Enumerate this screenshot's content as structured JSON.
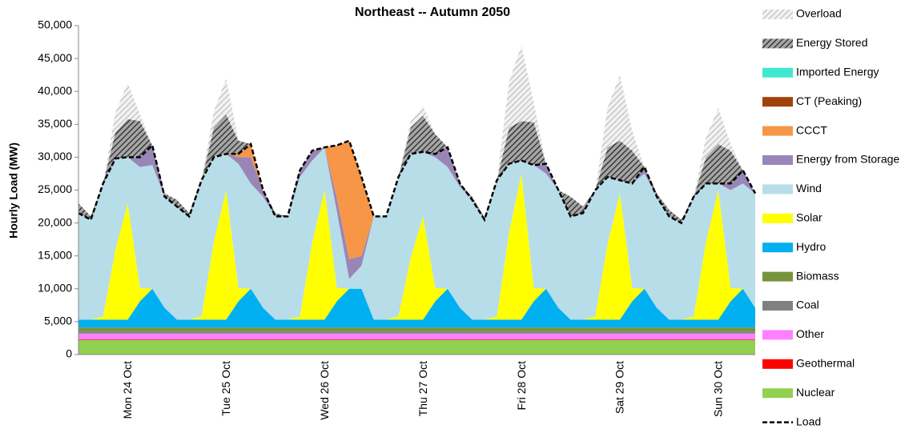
{
  "chart_data": {
    "type": "stacked_area",
    "title": "Northeast -- Autumn 2050",
    "y_label": "Hourly Load (MW)",
    "categories": [
      null,
      null,
      null,
      null,
      "Mon 24 Oct",
      null,
      null,
      null,
      null,
      null,
      null,
      null,
      "Tue 25 Oct",
      null,
      null,
      null,
      null,
      null,
      null,
      null,
      "Wed 26 Oct",
      null,
      null,
      null,
      null,
      null,
      null,
      null,
      "Thu 27 Oct",
      null,
      null,
      null,
      null,
      null,
      null,
      null,
      "Fri 28 Oct",
      null,
      null,
      null,
      null,
      null,
      null,
      null,
      "Sat 29 Oct",
      null,
      null,
      null,
      null,
      null,
      null,
      null,
      "Sun 30 Oct",
      null,
      null,
      null
    ],
    "ylim": [
      0,
      50000
    ],
    "yticks": [
      0,
      {
        "value": 5000,
        "label": "5,000"
      },
      {
        "value": 10000,
        "label": "10,000"
      },
      {
        "value": 15000,
        "label": "15,000"
      },
      {
        "value": 20000,
        "label": "20,000"
      },
      {
        "value": 25000,
        "label": "25,000"
      },
      {
        "value": 30000,
        "label": "30,000"
      },
      {
        "value": 35000,
        "label": "35,000"
      },
      {
        "value": 40000,
        "label": "40,000"
      },
      {
        "value": 45000,
        "label": "45,000"
      },
      {
        "value": 50000,
        "label": "50,000"
      }
    ],
    "series": [
      {
        "name": "Nuclear",
        "color": "#92d050",
        "values": [
          2200,
          2200,
          2200,
          2200,
          2200,
          2200,
          2200,
          2200,
          2200,
          2200,
          2200,
          2200,
          2200,
          2200,
          2200,
          2200,
          2200,
          2200,
          2200,
          2200,
          2200,
          2200,
          2200,
          2200,
          2200,
          2200,
          2200,
          2200,
          2200,
          2200,
          2200,
          2200,
          2200,
          2200,
          2200,
          2200,
          2200,
          2200,
          2200,
          2200,
          2200,
          2200,
          2200,
          2200,
          2200,
          2200,
          2200,
          2200,
          2200,
          2200,
          2200,
          2200,
          2200,
          2200,
          2200,
          2200
        ]
      },
      {
        "name": "Geothermal",
        "color": "#ff0000",
        "values": [
          100,
          100,
          100,
          100,
          100,
          100,
          100,
          100,
          100,
          100,
          100,
          100,
          100,
          100,
          100,
          100,
          100,
          100,
          100,
          100,
          100,
          100,
          100,
          100,
          100,
          100,
          100,
          100,
          100,
          100,
          100,
          100,
          100,
          100,
          100,
          100,
          100,
          100,
          100,
          100,
          100,
          100,
          100,
          100,
          100,
          100,
          100,
          100,
          100,
          100,
          100,
          100,
          100,
          100,
          100,
          100
        ]
      },
      {
        "name": "Other",
        "color": "#ff80ff",
        "values": [
          900,
          900,
          900,
          900,
          900,
          900,
          900,
          900,
          900,
          900,
          900,
          900,
          900,
          900,
          900,
          900,
          900,
          900,
          900,
          900,
          900,
          900,
          900,
          900,
          900,
          900,
          900,
          900,
          900,
          900,
          900,
          900,
          900,
          900,
          900,
          900,
          900,
          900,
          900,
          900,
          900,
          900,
          900,
          900,
          900,
          900,
          900,
          900,
          900,
          900,
          900,
          900,
          900,
          900,
          900,
          900
        ]
      },
      {
        "name": "Coal",
        "color": "#808080",
        "values": [
          300,
          300,
          300,
          300,
          300,
          300,
          300,
          300,
          300,
          300,
          300,
          300,
          300,
          300,
          300,
          300,
          300,
          300,
          300,
          300,
          300,
          300,
          300,
          300,
          300,
          300,
          300,
          300,
          300,
          300,
          300,
          300,
          300,
          300,
          300,
          300,
          300,
          300,
          300,
          300,
          300,
          300,
          300,
          300,
          300,
          300,
          300,
          300,
          300,
          300,
          300,
          300,
          300,
          300,
          300,
          300
        ]
      },
      {
        "name": "Biomass",
        "color": "#77933c",
        "values": [
          600,
          600,
          600,
          600,
          600,
          600,
          600,
          600,
          600,
          600,
          600,
          600,
          600,
          600,
          600,
          600,
          600,
          600,
          600,
          600,
          600,
          600,
          600,
          600,
          600,
          600,
          600,
          600,
          600,
          600,
          600,
          600,
          600,
          600,
          600,
          600,
          600,
          600,
          600,
          600,
          600,
          600,
          600,
          600,
          600,
          600,
          600,
          600,
          600,
          600,
          600,
          600,
          600,
          600,
          600,
          600
        ]
      },
      {
        "name": "Hydro",
        "color": "#00b0f0",
        "values": [
          1200,
          1200,
          1200,
          1200,
          1200,
          4000,
          5900,
          3000,
          1200,
          1200,
          1200,
          1200,
          1200,
          4000,
          5900,
          3000,
          1200,
          1200,
          1200,
          1200,
          1200,
          4000,
          5900,
          5900,
          1200,
          1200,
          1200,
          1200,
          1200,
          4000,
          5900,
          3000,
          1200,
          1200,
          1200,
          1200,
          1200,
          4000,
          5900,
          3000,
          1200,
          1200,
          1200,
          1200,
          1200,
          4000,
          5900,
          3000,
          1200,
          1200,
          1200,
          1200,
          1200,
          4000,
          5900,
          3000
        ]
      },
      {
        "name": "Solar",
        "color": "#ffff00",
        "values": [
          0,
          0,
          500,
          10600,
          17700,
          2000,
          0,
          0,
          0,
          0,
          500,
          11800,
          19700,
          2000,
          0,
          0,
          0,
          0,
          500,
          11800,
          19700,
          2000,
          0,
          0,
          0,
          0,
          500,
          9400,
          15700,
          2000,
          0,
          0,
          0,
          0,
          500,
          13300,
          22200,
          2000,
          0,
          0,
          0,
          0,
          500,
          11500,
          19200,
          2000,
          0,
          0,
          0,
          0,
          500,
          11800,
          19700,
          2000,
          0,
          0
        ]
      },
      {
        "name": "Wind",
        "color": "#b7dde8",
        "values": [
          16200,
          15200,
          20200,
          13900,
          7000,
          18400,
          18800,
          16900,
          17200,
          15700,
          20700,
          12900,
          5500,
          18900,
          16000,
          16900,
          15700,
          15700,
          21200,
          12400,
          6500,
          11700,
          1500,
          3500,
          15700,
          15700,
          21200,
          15800,
          9800,
          19900,
          18500,
          18400,
          18200,
          15200,
          20700,
          10400,
          2000,
          18700,
          17500,
          17900,
          15700,
          16200,
          19200,
          10200,
          2000,
          15900,
          17500,
          16900,
          15700,
          14700,
          18200,
          8900,
          1000,
          14900,
          16000,
          17400
        ]
      },
      {
        "name": "Energy from Storage",
        "color": "#9a86b6",
        "values": [
          0,
          0,
          0,
          0,
          0,
          1500,
          3000,
          0,
          0,
          0,
          0,
          0,
          0,
          1000,
          4000,
          1000,
          0,
          0,
          1000,
          1500,
          0,
          2000,
          3000,
          1500,
          0,
          0,
          0,
          0,
          0,
          500,
          3000,
          500,
          0,
          0,
          0,
          0,
          0,
          0,
          1500,
          0,
          0,
          0,
          0,
          0,
          0,
          0,
          1000,
          0,
          0,
          0,
          0,
          0,
          0,
          1000,
          2000,
          0
        ]
      },
      {
        "name": "CCCT",
        "color": "#f79646",
        "values": [
          0,
          0,
          0,
          0,
          0,
          0,
          0,
          0,
          0,
          0,
          0,
          0,
          0,
          500,
          2000,
          0,
          0,
          0,
          0,
          0,
          0,
          8000,
          18000,
          12000,
          0,
          0,
          0,
          0,
          0,
          0,
          0,
          0,
          0,
          0,
          0,
          0,
          0,
          0,
          0,
          0,
          0,
          0,
          0,
          0,
          0,
          0,
          0,
          0,
          0,
          0,
          0,
          0,
          0,
          0,
          0,
          0
        ]
      },
      {
        "name": "CT (Peaking)",
        "color": "#a0420a",
        "values": [
          0,
          0,
          0,
          0,
          0,
          0,
          0,
          0,
          0,
          0,
          0,
          0,
          0,
          0,
          0,
          0,
          0,
          0,
          0,
          0,
          0,
          0,
          0,
          0,
          0,
          0,
          0,
          0,
          0,
          0,
          0,
          0,
          0,
          0,
          0,
          0,
          0,
          0,
          0,
          0,
          0,
          0,
          0,
          0,
          0,
          0,
          0,
          0,
          0,
          0,
          0,
          0,
          0,
          0,
          0,
          0
        ]
      },
      {
        "name": "Imported Energy",
        "color": "#40e8d0",
        "values": [
          0,
          0,
          0,
          0,
          0,
          0,
          0,
          0,
          0,
          0,
          0,
          0,
          0,
          0,
          0,
          0,
          0,
          0,
          0,
          0,
          0,
          0,
          0,
          0,
          0,
          0,
          0,
          0,
          0,
          0,
          0,
          0,
          0,
          0,
          0,
          0,
          0,
          0,
          0,
          0,
          0,
          0,
          0,
          0,
          0,
          0,
          0,
          0,
          0,
          0,
          0,
          0,
          0,
          0,
          0,
          0
        ]
      },
      {
        "name": "Energy Stored",
        "color": "#a6a6a6",
        "hatch_color": "#262626",
        "values": [
          1500,
          500,
          0,
          4000,
          5800,
          5500,
          0,
          500,
          1000,
          500,
          0,
          4500,
          6000,
          2000,
          0,
          0,
          500,
          0,
          0,
          0,
          0,
          0,
          0,
          0,
          0,
          0,
          0,
          4000,
          5500,
          3000,
          0,
          0,
          500,
          300,
          0,
          5500,
          6000,
          6500,
          0,
          0,
          3000,
          1000,
          0,
          4500,
          6000,
          5000,
          0,
          500,
          1000,
          500,
          0,
          4000,
          6000,
          5000,
          0,
          0
        ]
      },
      {
        "name": "Overload",
        "color": "#f2f2f2",
        "hatch_color": "#bfbfbf",
        "values": [
          0,
          0,
          0,
          3000,
          5500,
          1000,
          0,
          0,
          0,
          0,
          0,
          2500,
          5500,
          0,
          0,
          0,
          0,
          0,
          0,
          0,
          0,
          0,
          0,
          0,
          0,
          0,
          0,
          1000,
          1500,
          0,
          0,
          0,
          0,
          0,
          0,
          7000,
          11500,
          3000,
          0,
          0,
          0,
          0,
          0,
          6000,
          10000,
          3000,
          0,
          0,
          0,
          0,
          0,
          3000,
          5500,
          1000,
          0,
          0
        ]
      },
      {
        "name": "Load",
        "color": "#000000",
        "kind": "line",
        "dashed": true,
        "values": [
          21500,
          20500,
          26000,
          29800,
          30000,
          30000,
          31800,
          24000,
          22500,
          21000,
          26500,
          30000,
          30500,
          30500,
          32000,
          25000,
          21000,
          21000,
          28000,
          31000,
          31500,
          31800,
          32500,
          27000,
          21000,
          21000,
          27000,
          30500,
          30800,
          30500,
          31500,
          26000,
          23500,
          20500,
          26500,
          29000,
          29500,
          28800,
          29000,
          25000,
          21000,
          21500,
          25000,
          27000,
          26500,
          26000,
          28500,
          24000,
          21000,
          20000,
          24000,
          26000,
          26000,
          26000,
          28000,
          24500
        ]
      }
    ]
  }
}
